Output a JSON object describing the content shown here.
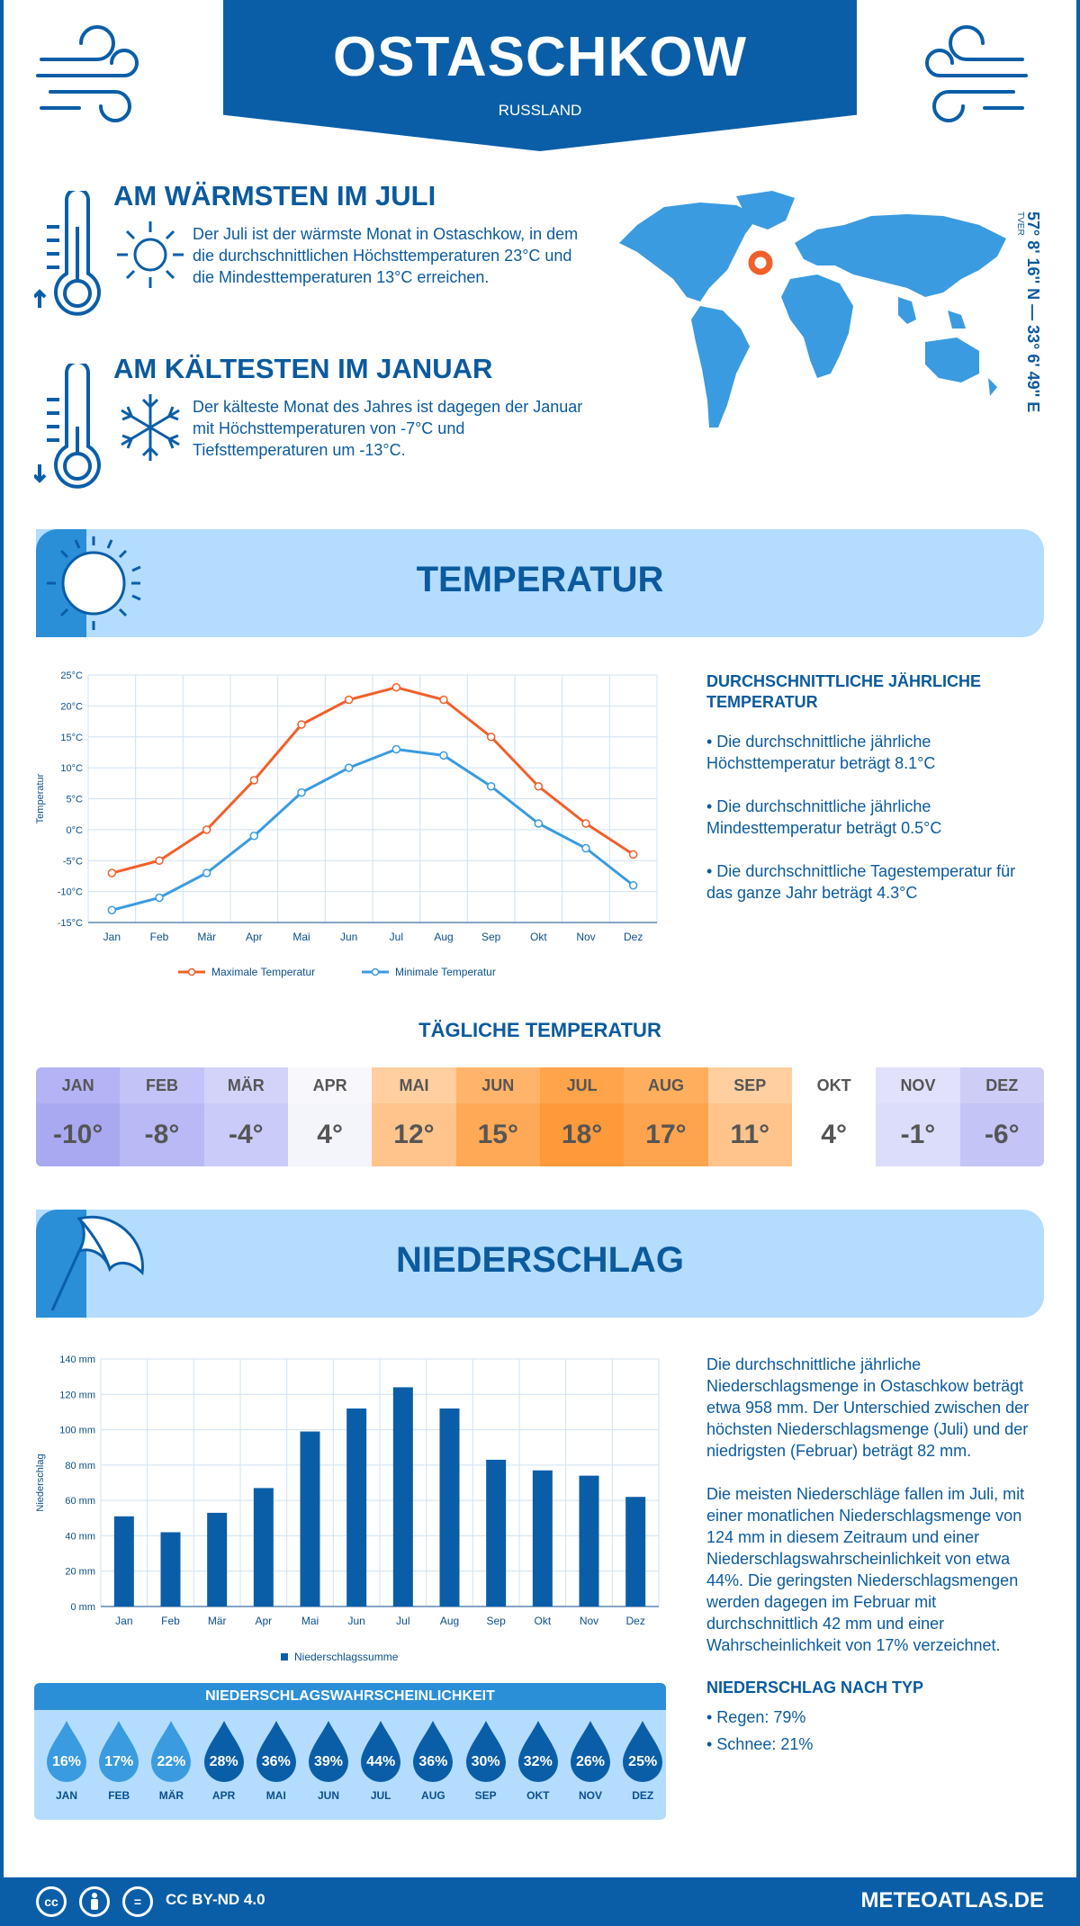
{
  "header": {
    "city": "OSTASCHKOW",
    "country": "RUSSLAND"
  },
  "warmest": {
    "title": "AM WÄRMSTEN IM JULI",
    "text": "Der Juli ist der wärmste Monat in Ostaschkow, in dem die durchschnittlichen Höchsttemperaturen 23°C und die Mindesttemperaturen 13°C erreichen."
  },
  "coldest": {
    "title": "AM KÄLTESTEN IM JANUAR",
    "text": "Der kälteste Monat des Jahres ist dagegen der Januar mit Höchsttemperaturen von -7°C und Tiefsttemperaturen um -13°C."
  },
  "location": {
    "coords": "57° 8' 16'' N — 33° 6' 49'' E",
    "region": "TVER"
  },
  "temperature_section": {
    "title": "TEMPERATUR",
    "side_title": "DURCHSCHNITTLICHE JÄHRLICHE TEMPERATUR",
    "bullets": [
      "• Die durchschnittliche jährliche Höchsttemperatur beträgt 8.1°C",
      "• Die durchschnittliche jährliche Mindesttemperatur beträgt 0.5°C",
      "• Die durchschnittliche Tagestemperatur für das ganze Jahr beträgt 4.3°C"
    ]
  },
  "daily": {
    "title": "TÄGLICHE TEMPERATUR",
    "months": [
      "JAN",
      "FEB",
      "MÄR",
      "APR",
      "MAI",
      "JUN",
      "JUL",
      "AUG",
      "SEP",
      "OKT",
      "NOV",
      "DEZ"
    ],
    "values": [
      "-10°",
      "-8°",
      "-4°",
      "4°",
      "12°",
      "15°",
      "18°",
      "17°",
      "11°",
      "4°",
      "-1°",
      "-6°"
    ],
    "head_colors": [
      "#b3b3f5",
      "#c3c3f8",
      "#d3d3fa",
      "#f8f8fc",
      "#ffcf9f",
      "#ffb46a",
      "#ffa44a",
      "#ffae5e",
      "#ffcf9f",
      "#ffffff",
      "#e1e1fb",
      "#cdcdf7"
    ],
    "val_colors": [
      "#a9a9f2",
      "#b9b9f6",
      "#cbcbf9",
      "#f4f4fb",
      "#ffc48c",
      "#ffa956",
      "#ff9a3a",
      "#ffa44e",
      "#ffc48c",
      "#ffffff",
      "#dcdcfb",
      "#c4c4f6"
    ]
  },
  "precip_section": {
    "title": "NIEDERSCHLAG",
    "text1": "Die durchschnittliche jährliche Niederschlagsmenge in Ostaschkow beträgt etwa 958 mm. Der Unterschied zwischen der höchsten Niederschlagsmenge (Juli) und der niedrigsten (Februar) beträgt 82 mm.",
    "text2": "Die meisten Niederschläge fallen im Juli, mit einer monatlichen Niederschlagsmenge von 124 mm in diesem Zeitraum und einer Niederschlagswahrscheinlichkeit von etwa 44%. Die geringsten Niederschlagsmengen werden dagegen im Februar mit durchschnittlich 42 mm und einer Wahrscheinlichkeit von 17% verzeichnet.",
    "type_title": "NIEDERSCHLAG NACH TYP",
    "types": [
      "• Regen: 79%",
      "• Schnee: 21%"
    ]
  },
  "probability": {
    "title": "NIEDERSCHLAGSWAHRSCHEINLICHKEIT",
    "months": [
      "JAN",
      "FEB",
      "MÄR",
      "APR",
      "MAI",
      "JUN",
      "JUL",
      "AUG",
      "SEP",
      "OKT",
      "NOV",
      "DEZ"
    ],
    "values": [
      "16%",
      "17%",
      "22%",
      "28%",
      "36%",
      "39%",
      "44%",
      "36%",
      "30%",
      "32%",
      "26%",
      "25%"
    ],
    "colors": [
      "#3a9be0",
      "#3a9be0",
      "#3a9be0",
      "#0a5ea8",
      "#0a5ea8",
      "#0a5ea8",
      "#0a5ea8",
      "#0a5ea8",
      "#0a5ea8",
      "#0a5ea8",
      "#0a5ea8",
      "#0a5ea8"
    ]
  },
  "footer": {
    "license": "CC BY-ND 4.0",
    "site": "METEOATLAS.DE",
    "cc": "cc",
    "eq": "="
  },
  "chart_data": [
    {
      "type": "line",
      "categories": [
        "Jan",
        "Feb",
        "Mär",
        "Apr",
        "Mai",
        "Jun",
        "Jul",
        "Aug",
        "Sep",
        "Okt",
        "Nov",
        "Dez"
      ],
      "ylabel": "Temperatur",
      "ylim": [
        -15,
        25
      ],
      "yticks": [
        "-15°C",
        "-10°C",
        "-5°C",
        "0°C",
        "5°C",
        "10°C",
        "15°C",
        "20°C",
        "25°C"
      ],
      "series": [
        {
          "name": "Maximale Temperatur",
          "color": "#f0602a",
          "values": [
            -7,
            -5,
            0,
            8,
            17,
            21,
            23,
            21,
            15,
            7,
            1,
            -4
          ]
        },
        {
          "name": "Minimale Temperatur",
          "color": "#3a9be0",
          "values": [
            -13,
            -11,
            -7,
            -1,
            6,
            10,
            13,
            12,
            7,
            1,
            -3,
            -9
          ]
        }
      ]
    },
    {
      "type": "bar",
      "categories": [
        "Jan",
        "Feb",
        "Mär",
        "Apr",
        "Mai",
        "Jun",
        "Jul",
        "Aug",
        "Sep",
        "Okt",
        "Nov",
        "Dez"
      ],
      "ylabel": "Niederschlag",
      "ylim": [
        0,
        140
      ],
      "yticks": [
        "0 mm",
        "20 mm",
        "40 mm",
        "60 mm",
        "80 mm",
        "100 mm",
        "120 mm",
        "140 mm"
      ],
      "series": [
        {
          "name": "Niederschlagssumme",
          "color": "#0a5ea8",
          "values": [
            51,
            42,
            53,
            67,
            99,
            112,
            124,
            112,
            83,
            77,
            74,
            62
          ]
        }
      ]
    }
  ]
}
